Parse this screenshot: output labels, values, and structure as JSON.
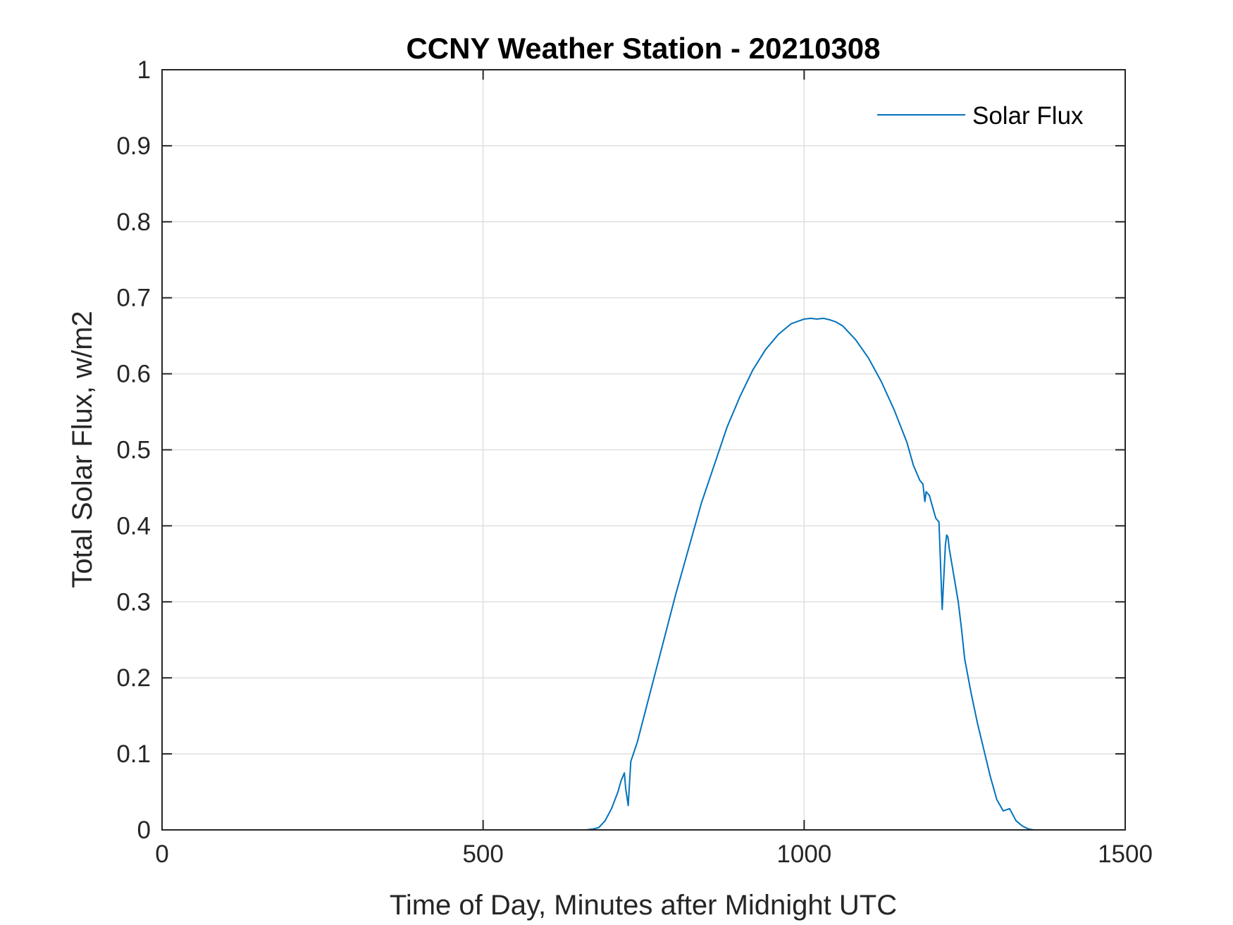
{
  "chart_data": {
    "type": "line",
    "title": "CCNY Weather Station - 20210308",
    "xlabel": "Time of Day, Minutes after Midnight UTC",
    "ylabel": "Total Solar Flux, w/m2",
    "xlim": [
      0,
      1500
    ],
    "ylim": [
      0,
      1
    ],
    "xticks": [
      0,
      500,
      1000,
      1500
    ],
    "xtick_labels": [
      "0",
      "500",
      "1000",
      "1500"
    ],
    "yticks": [
      0,
      0.1,
      0.2,
      0.3,
      0.4,
      0.5,
      0.6,
      0.7,
      0.8,
      0.9,
      1
    ],
    "ytick_labels": [
      "0",
      "0.1",
      "0.2",
      "0.3",
      "0.4",
      "0.5",
      "0.6",
      "0.7",
      "0.8",
      "0.9",
      "1"
    ],
    "grid": true,
    "legend_location": "top-right",
    "series": [
      {
        "name": "Solar Flux",
        "color": "#0072BD",
        "x": [
          0,
          660,
          670,
          680,
          690,
          700,
          710,
          715,
          720,
          722,
          726,
          730,
          740,
          760,
          780,
          800,
          820,
          840,
          860,
          880,
          900,
          920,
          940,
          960,
          980,
          1000,
          1010,
          1020,
          1030,
          1040,
          1050,
          1060,
          1080,
          1100,
          1120,
          1140,
          1160,
          1170,
          1180,
          1185,
          1188,
          1190,
          1195,
          1200,
          1205,
          1210,
          1215,
          1220,
          1222,
          1224,
          1226,
          1228,
          1232,
          1236,
          1240,
          1245,
          1250,
          1260,
          1270,
          1280,
          1290,
          1300,
          1310,
          1320,
          1330,
          1340,
          1350,
          1358,
          1360,
          1365,
          1370,
          1380,
          1390,
          1400,
          1420,
          1450
        ],
        "values": [
          0,
          0,
          0.001,
          0.003,
          0.012,
          0.028,
          0.05,
          0.065,
          0.075,
          0.055,
          0.032,
          0.09,
          0.115,
          0.18,
          0.245,
          0.31,
          0.37,
          0.43,
          0.48,
          0.53,
          0.57,
          0.605,
          0.632,
          0.652,
          0.666,
          0.672,
          0.673,
          0.672,
          0.673,
          0.671,
          0.668,
          0.663,
          0.645,
          0.621,
          0.59,
          0.553,
          0.51,
          0.48,
          0.46,
          0.455,
          0.432,
          0.445,
          0.44,
          0.425,
          0.41,
          0.405,
          0.29,
          0.375,
          0.388,
          0.385,
          0.37,
          0.36,
          0.34,
          0.32,
          0.3,
          0.265,
          0.225,
          0.18,
          0.14,
          0.105,
          0.07,
          0.04,
          0.025,
          0.028,
          0.012,
          0.005,
          0.001,
          0,
          0,
          0,
          0,
          0,
          0,
          0,
          0,
          0
        ]
      }
    ]
  }
}
